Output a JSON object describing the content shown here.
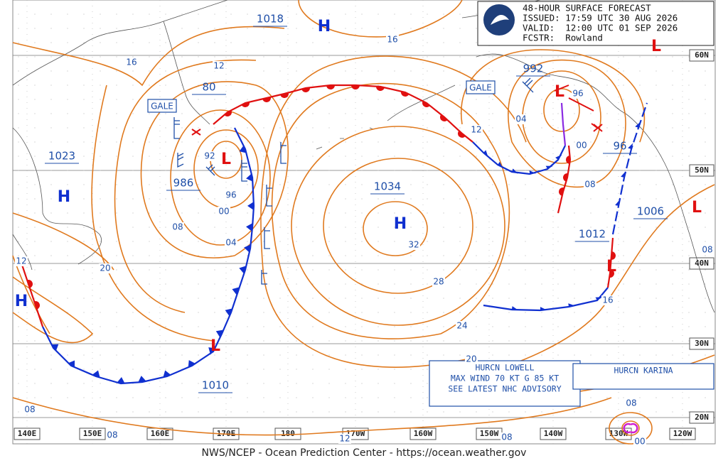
{
  "header": {
    "title": "48-HOUR SURFACE FORECAST",
    "issued": "ISSUED: 17:59 UTC 30 AUG 2026",
    "valid": "VALID:  12:00 UTC 01 SEP 2026",
    "forecaster": "FCSTR:  Rowland"
  },
  "latitudes": [
    "60N",
    "50N",
    "40N",
    "30N",
    "20N"
  ],
  "longitudes": [
    "140E",
    "150E",
    "160E",
    "170E",
    "180",
    "170W",
    "160W",
    "150W",
    "140W",
    "130W",
    "120W"
  ],
  "high_symbol": "H",
  "low_symbol": "L",
  "pressure_labels": [
    "1018",
    "80",
    "992",
    "1023",
    "986",
    "1034",
    "96",
    "1006",
    "1012",
    "1010"
  ],
  "isobar_labels": [
    "16",
    "12",
    "16",
    "12",
    "04",
    "00",
    "08",
    "92",
    "96",
    "00",
    "04",
    "08",
    "20",
    "12",
    "32",
    "28",
    "24",
    "20",
    "16",
    "08",
    "08",
    "08",
    "12",
    "08",
    "08",
    "00",
    "96"
  ],
  "warnings": [
    "GALE",
    "GALE"
  ],
  "hurricanes": [
    {
      "name": "HURCN LOWELL",
      "wind": "MAX WIND 70 KT G 85 KT",
      "advisory": "SEE LATEST NHC ADVISORY"
    },
    {
      "name": "HURCN KARINA"
    }
  ],
  "footer": "NWS/NCEP - Ocean Prediction Center - https://ocean.weather.gov"
}
